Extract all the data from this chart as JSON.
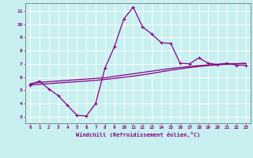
{
  "title": "",
  "xlabel": "Windchill (Refroidissement éolien,°C)",
  "ylabel": "",
  "bg_color": "#c8f0f0",
  "grid_color": "#ffffff",
  "line_color": "#880088",
  "xlim": [
    -0.5,
    23.5
  ],
  "ylim": [
    2.5,
    11.6
  ],
  "xticks": [
    0,
    1,
    2,
    3,
    4,
    5,
    6,
    7,
    8,
    9,
    10,
    11,
    12,
    13,
    14,
    15,
    16,
    17,
    18,
    19,
    20,
    21,
    22,
    23
  ],
  "yticks": [
    3,
    4,
    5,
    6,
    7,
    8,
    9,
    10,
    11
  ],
  "line1_x": [
    0,
    1,
    2,
    3,
    4,
    5,
    6,
    7,
    8,
    9,
    10,
    11,
    12,
    13,
    14,
    15,
    16,
    17,
    18,
    19,
    20,
    21,
    22,
    23
  ],
  "line1_y": [
    5.4,
    5.7,
    5.1,
    4.6,
    3.85,
    3.1,
    3.05,
    4.0,
    6.7,
    8.3,
    10.4,
    11.3,
    9.8,
    9.25,
    8.6,
    8.55,
    7.05,
    7.0,
    7.45,
    7.05,
    6.95,
    7.05,
    6.9,
    6.9
  ],
  "line2_x": [
    0,
    1,
    2,
    3,
    4,
    5,
    6,
    7,
    8,
    9,
    10,
    11,
    12,
    13,
    14,
    15,
    16,
    17,
    18,
    19,
    20,
    21,
    22,
    23
  ],
  "line2_y": [
    5.5,
    5.6,
    5.65,
    5.7,
    5.75,
    5.8,
    5.85,
    5.9,
    5.95,
    6.05,
    6.15,
    6.25,
    6.35,
    6.45,
    6.55,
    6.65,
    6.72,
    6.8,
    6.87,
    6.92,
    6.97,
    7.0,
    7.02,
    7.05
  ],
  "line3_x": [
    0,
    1,
    2,
    3,
    4,
    5,
    6,
    7,
    8,
    9,
    10,
    11,
    12,
    13,
    14,
    15,
    16,
    17,
    18,
    19,
    20,
    21,
    22,
    23
  ],
  "line3_y": [
    5.4,
    5.45,
    5.5,
    5.55,
    5.6,
    5.65,
    5.7,
    5.75,
    5.82,
    5.9,
    5.98,
    6.07,
    6.17,
    6.28,
    6.4,
    6.52,
    6.62,
    6.72,
    6.8,
    6.87,
    6.93,
    6.97,
    7.0,
    7.02
  ]
}
